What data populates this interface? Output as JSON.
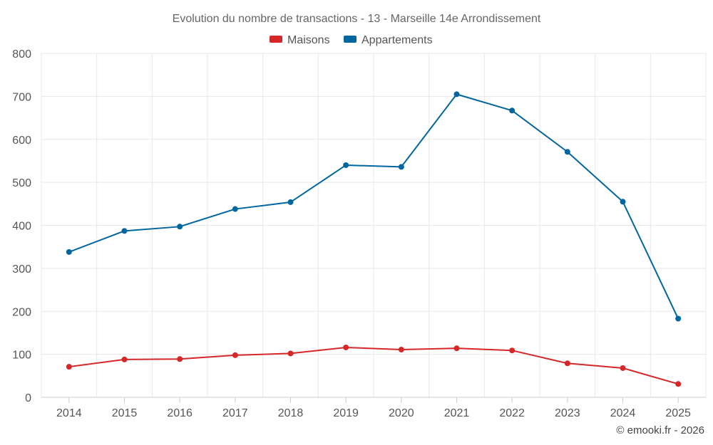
{
  "chart_data": {
    "type": "line",
    "title": "Evolution du nombre de transactions - 13 - Marseille 14e Arrondissement",
    "categories": [
      "2014",
      "2015",
      "2016",
      "2017",
      "2018",
      "2019",
      "2020",
      "2021",
      "2022",
      "2023",
      "2024",
      "2025"
    ],
    "series": [
      {
        "name": "Maisons",
        "color": "#d62728",
        "values": [
          71,
          88,
          89,
          98,
          102,
          116,
          111,
          114,
          109,
          79,
          68,
          31
        ]
      },
      {
        "name": "Appartements",
        "color": "#0066a0",
        "values": [
          338,
          387,
          397,
          438,
          454,
          540,
          536,
          705,
          667,
          571,
          455,
          183
        ]
      }
    ],
    "ylim": [
      0,
      800
    ],
    "yticks": [
      "0",
      "100",
      "200",
      "300",
      "400",
      "500",
      "600",
      "700",
      "800"
    ],
    "grid": true,
    "legend": "top-center",
    "xlabel": "",
    "ylabel": ""
  },
  "credit": "© emooki.fr - 2026"
}
